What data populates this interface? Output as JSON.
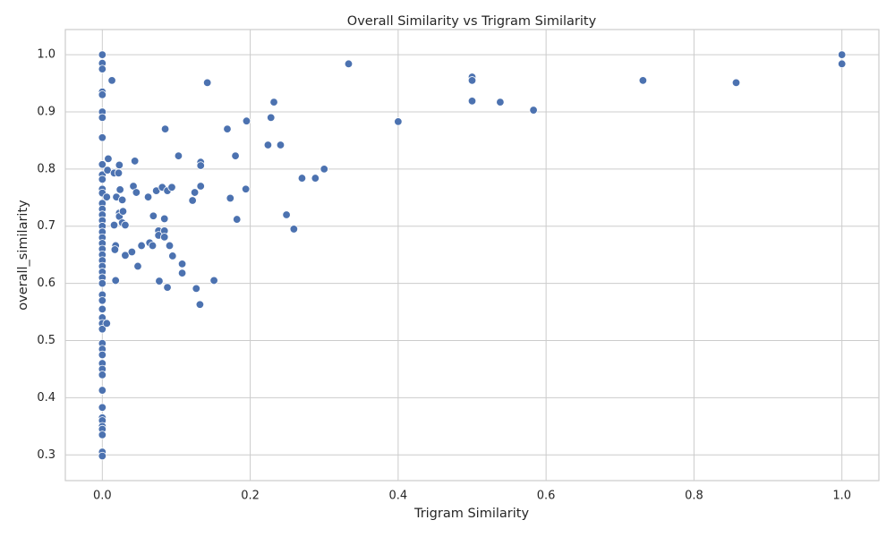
{
  "chart_data": {
    "type": "scatter",
    "title": "Overall Similarity vs Trigram Similarity",
    "xlabel": "Trigram Similarity",
    "ylabel": "overall_similarity",
    "color": "#4c72b0",
    "grid": true,
    "xlim": [
      -0.05,
      1.05
    ],
    "ylim": [
      0.255,
      1.044
    ],
    "xticks": [
      {
        "value": 0,
        "label": "0.0"
      },
      0.2,
      0.4,
      0.6,
      0.8,
      {
        "value": 1,
        "label": "1.0"
      }
    ],
    "yticks": [
      0.3,
      0.4,
      0.5,
      0.6,
      0.7,
      0.8,
      0.9,
      {
        "value": 1,
        "label": "1.0"
      }
    ],
    "x": [
      0,
      0,
      0,
      0,
      0,
      0,
      0,
      0,
      0,
      0,
      0,
      0,
      0,
      0,
      0,
      0,
      0,
      0,
      0,
      0,
      0,
      0,
      0,
      0,
      0,
      0,
      0,
      0,
      0,
      0,
      0,
      0,
      0,
      0,
      0,
      0,
      0,
      0,
      0,
      0,
      0,
      0,
      0,
      0,
      0,
      0,
      0,
      0,
      0,
      0.013,
      0.007,
      0.008,
      0.006,
      0.006,
      0.016,
      0.022,
      0.023,
      0.016,
      0.018,
      0.017,
      0.018,
      0.019,
      0.023,
      0.023,
      0.024,
      0.027,
      0.028,
      0.027,
      0.031,
      0.031,
      0.04,
      0.044,
      0.042,
      0.046,
      0.048,
      0.053,
      0.062,
      0.064,
      0.068,
      0.069,
      0.073,
      0.076,
      0.076,
      0.077,
      0.081,
      0.084,
      0.084,
      0.084,
      0.085,
      0.088,
      0.088,
      0.091,
      0.094,
      0.095,
      0.103,
      0.108,
      0.108,
      0.122,
      0.125,
      0.127,
      0.132,
      0.133,
      0.133,
      0.133,
      0.151,
      0.169,
      0.173,
      0.142,
      0.18,
      0.182,
      0.195,
      0.194,
      0.224,
      0.228,
      0.232,
      0.241,
      0.249,
      0.259,
      0.27,
      0.288,
      0.3,
      0.333,
      0.4,
      0.5,
      0.5,
      0.5,
      0.538,
      0.583,
      0.731,
      0.857,
      1,
      1
    ],
    "values": [
      1,
      0.985,
      0.975,
      0.935,
      0.93,
      0.9,
      0.89,
      0.855,
      0.808,
      0.79,
      0.782,
      0.765,
      0.758,
      0.74,
      0.73,
      0.72,
      0.71,
      0.7,
      0.69,
      0.68,
      0.67,
      0.66,
      0.65,
      0.64,
      0.63,
      0.62,
      0.61,
      0.6,
      0.58,
      0.57,
      0.555,
      0.54,
      0.53,
      0.52,
      0.495,
      0.485,
      0.475,
      0.46,
      0.45,
      0.44,
      0.413,
      0.383,
      0.365,
      0.36,
      0.35,
      0.345,
      0.335,
      0.305,
      0.298,
      0.955,
      0.798,
      0.818,
      0.751,
      0.53,
      0.793,
      0.793,
      0.807,
      0.702,
      0.666,
      0.659,
      0.605,
      0.751,
      0.723,
      0.717,
      0.764,
      0.746,
      0.726,
      0.706,
      0.702,
      0.649,
      0.655,
      0.814,
      0.77,
      0.759,
      0.63,
      0.666,
      0.751,
      0.671,
      0.666,
      0.718,
      0.762,
      0.692,
      0.684,
      0.604,
      0.768,
      0.692,
      0.681,
      0.713,
      0.87,
      0.762,
      0.593,
      0.666,
      0.768,
      0.648,
      0.823,
      0.634,
      0.618,
      0.745,
      0.759,
      0.591,
      0.563,
      0.812,
      0.806,
      0.77,
      0.605,
      0.87,
      0.749,
      0.951,
      0.823,
      0.712,
      0.884,
      0.765,
      0.842,
      0.89,
      0.917,
      0.842,
      0.72,
      0.695,
      0.784,
      0.784,
      0.8,
      0.984,
      0.883,
      0.961,
      0.955,
      0.919,
      0.917,
      0.903,
      0.955,
      0.951,
      1,
      0.984
    ]
  }
}
